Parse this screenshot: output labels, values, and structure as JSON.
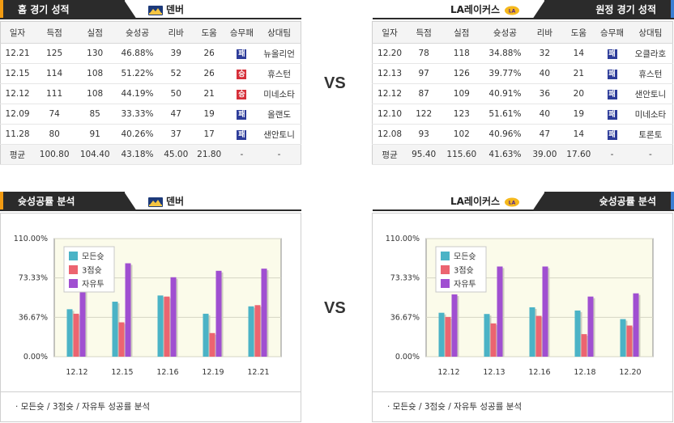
{
  "home": {
    "header_title": "홈 경기 성적",
    "team": "덴버",
    "columns": [
      "일자",
      "득점",
      "실점",
      "슛성공",
      "리바",
      "도움",
      "승무패",
      "상대팀"
    ],
    "rows": [
      {
        "date": "12.21",
        "pts": "125",
        "opp": "130",
        "fg": "46.88%",
        "reb": "39",
        "ast": "26",
        "result": "패",
        "vs": "뉴올리언"
      },
      {
        "date": "12.15",
        "pts": "114",
        "opp": "108",
        "fg": "51.22%",
        "reb": "52",
        "ast": "26",
        "result": "승",
        "vs": "휴스턴"
      },
      {
        "date": "12.12",
        "pts": "111",
        "opp": "108",
        "fg": "44.19%",
        "reb": "50",
        "ast": "21",
        "result": "승",
        "vs": "미네소타"
      },
      {
        "date": "12.09",
        "pts": "74",
        "opp": "85",
        "fg": "33.33%",
        "reb": "47",
        "ast": "19",
        "result": "패",
        "vs": "올랜도"
      },
      {
        "date": "11.28",
        "pts": "80",
        "opp": "91",
        "fg": "40.26%",
        "reb": "37",
        "ast": "17",
        "result": "패",
        "vs": "샌안토니"
      }
    ],
    "avg": {
      "label": "평균",
      "pts": "100.80",
      "opp": "104.40",
      "fg": "43.18%",
      "reb": "45.00",
      "ast": "21.80",
      "result": "-",
      "vs": "-"
    }
  },
  "away": {
    "header_title": "원정 경기 성적",
    "team": "LA레이커스",
    "columns": [
      "일자",
      "득점",
      "실점",
      "슛성공",
      "리바",
      "도움",
      "승무패",
      "상대팀"
    ],
    "rows": [
      {
        "date": "12.20",
        "pts": "78",
        "opp": "118",
        "fg": "34.88%",
        "reb": "32",
        "ast": "14",
        "result": "패",
        "vs": "오클라호"
      },
      {
        "date": "12.13",
        "pts": "97",
        "opp": "126",
        "fg": "39.77%",
        "reb": "40",
        "ast": "21",
        "result": "패",
        "vs": "휴스턴"
      },
      {
        "date": "12.12",
        "pts": "87",
        "opp": "109",
        "fg": "40.91%",
        "reb": "36",
        "ast": "20",
        "result": "패",
        "vs": "샌안토니"
      },
      {
        "date": "12.10",
        "pts": "122",
        "opp": "123",
        "fg": "51.61%",
        "reb": "40",
        "ast": "19",
        "result": "패",
        "vs": "미네소타"
      },
      {
        "date": "12.08",
        "pts": "93",
        "opp": "102",
        "fg": "40.96%",
        "reb": "47",
        "ast": "14",
        "result": "패",
        "vs": "토론토"
      }
    ],
    "avg": {
      "label": "평균",
      "pts": "95.40",
      "opp": "115.60",
      "fg": "41.63%",
      "reb": "39.00",
      "ast": "17.60",
      "result": "-",
      "vs": "-"
    }
  },
  "vs_label": "VS",
  "chart_section": {
    "home_title": "슛성공률 분석",
    "away_title": "슛성공률 분석",
    "note": "· 모든슛 / 3점슛 / 자유투 성공률 분석"
  },
  "colors": {
    "fg": "#4bb3c6",
    "three": "#ec6470",
    "ft": "#a04fd1",
    "home_accent": "#f29b12",
    "away_accent": "#3a7fd4",
    "dark": "#2b2b2b"
  },
  "chart_data": [
    {
      "type": "bar",
      "categories": [
        "12.12",
        "12.15",
        "12.16",
        "12.19",
        "12.21"
      ],
      "series": [
        {
          "name": "모든슛",
          "values": [
            44.19,
            51.22,
            57.0,
            40.0,
            46.88
          ]
        },
        {
          "name": "3점슛",
          "values": [
            40.0,
            32.0,
            56.0,
            22.0,
            48.0
          ]
        },
        {
          "name": "자유투",
          "values": [
            88.0,
            87.0,
            74.0,
            80.0,
            82.0
          ]
        }
      ],
      "yticks": [
        "110.00%",
        "73.33%",
        "36.67%",
        "0.00%"
      ],
      "ylim": [
        0,
        110
      ]
    },
    {
      "type": "bar",
      "categories": [
        "12.12",
        "12.13",
        "12.16",
        "12.18",
        "12.20"
      ],
      "series": [
        {
          "name": "모든슛",
          "values": [
            40.91,
            39.77,
            46.0,
            43.0,
            35.0
          ]
        },
        {
          "name": "3점슛",
          "values": [
            37.0,
            31.0,
            38.0,
            21.0,
            29.0
          ]
        },
        {
          "name": "자유투",
          "values": [
            58.0,
            84.0,
            84.0,
            56.0,
            59.0
          ]
        }
      ],
      "yticks": [
        "110.00%",
        "73.33%",
        "36.67%",
        "0.00%"
      ],
      "ylim": [
        0,
        110
      ]
    }
  ]
}
